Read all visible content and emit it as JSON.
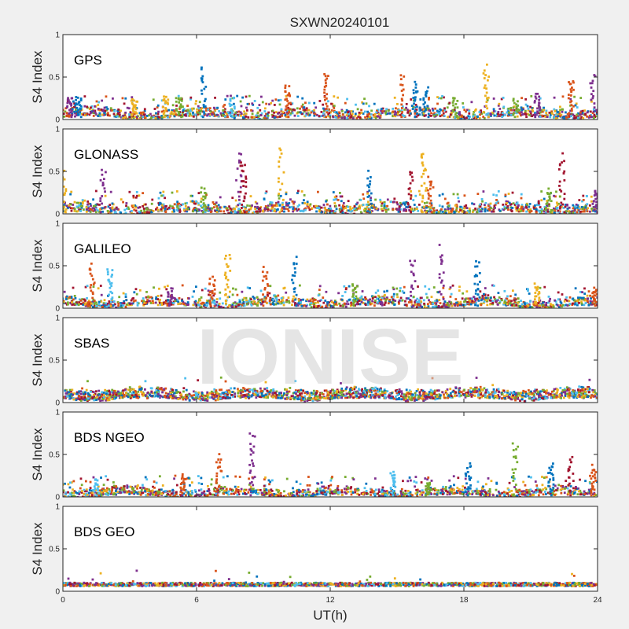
{
  "chart_data": {
    "type": "scatter",
    "title": "SXWN20240101",
    "xlabel": "UT(h)",
    "ylabel": "S4 Index",
    "xlim": [
      0,
      24
    ],
    "ylim": [
      0,
      1
    ],
    "xticks": [
      "0",
      "6",
      "12",
      "18",
      "24"
    ],
    "yticks": [
      "0",
      "0.5",
      "1"
    ],
    "grid": false,
    "watermark": "IONISE",
    "series_colors": [
      "#0072BD",
      "#D95319",
      "#EDB120",
      "#7E2F8E",
      "#77AC30",
      "#4DBEEE",
      "#A2142F"
    ],
    "panels": [
      {
        "name": "GPS",
        "baseline_band": [
          0.03,
          0.13
        ],
        "spikes": [
          {
            "x": 0.3,
            "peak": 0.28,
            "c": 3
          },
          {
            "x": 0.7,
            "peak": 0.28,
            "c": 0
          },
          {
            "x": 3.2,
            "peak": 0.25,
            "c": 2
          },
          {
            "x": 4.6,
            "peak": 0.3,
            "c": 2
          },
          {
            "x": 5.2,
            "peak": 0.28,
            "c": 4
          },
          {
            "x": 6.3,
            "peak": 0.65,
            "c": 0
          },
          {
            "x": 7.6,
            "peak": 0.28,
            "c": 5
          },
          {
            "x": 10.1,
            "peak": 0.42,
            "c": 1
          },
          {
            "x": 11.8,
            "peak": 0.6,
            "c": 1
          },
          {
            "x": 15.2,
            "peak": 0.55,
            "c": 1
          },
          {
            "x": 15.8,
            "peak": 0.45,
            "c": 0
          },
          {
            "x": 16.3,
            "peak": 0.38,
            "c": 0
          },
          {
            "x": 17.6,
            "peak": 0.28,
            "c": 4
          },
          {
            "x": 19.0,
            "peak": 0.65,
            "c": 2
          },
          {
            "x": 20.3,
            "peak": 0.25,
            "c": 4
          },
          {
            "x": 21.3,
            "peak": 0.32,
            "c": 3
          },
          {
            "x": 22.8,
            "peak": 0.52,
            "c": 1
          },
          {
            "x": 23.8,
            "peak": 0.58,
            "c": 3
          }
        ]
      },
      {
        "name": "GLONASS",
        "baseline_band": [
          0.02,
          0.12
        ],
        "spikes": [
          {
            "x": 0.05,
            "peak": 0.58,
            "c": 2
          },
          {
            "x": 1.8,
            "peak": 0.55,
            "c": 3
          },
          {
            "x": 6.3,
            "peak": 0.32,
            "c": 4
          },
          {
            "x": 7.9,
            "peak": 0.78,
            "c": 3
          },
          {
            "x": 8.1,
            "peak": 0.65,
            "c": 6
          },
          {
            "x": 9.8,
            "peak": 0.82,
            "c": 2
          },
          {
            "x": 13.8,
            "peak": 0.52,
            "c": 0
          },
          {
            "x": 15.6,
            "peak": 0.55,
            "c": 6
          },
          {
            "x": 16.2,
            "peak": 0.82,
            "c": 2
          },
          {
            "x": 16.5,
            "peak": 0.45,
            "c": 1
          },
          {
            "x": 21.8,
            "peak": 0.3,
            "c": 4
          },
          {
            "x": 22.4,
            "peak": 0.72,
            "c": 6
          },
          {
            "x": 23.9,
            "peak": 0.3,
            "c": 3
          }
        ]
      },
      {
        "name": "GALILEO",
        "baseline_band": [
          0.03,
          0.12
        ],
        "spikes": [
          {
            "x": 1.3,
            "peak": 0.55,
            "c": 1
          },
          {
            "x": 2.1,
            "peak": 0.5,
            "c": 5
          },
          {
            "x": 4.8,
            "peak": 0.25,
            "c": 3
          },
          {
            "x": 6.7,
            "peak": 0.38,
            "c": 1
          },
          {
            "x": 7.4,
            "peak": 0.68,
            "c": 2
          },
          {
            "x": 9.1,
            "peak": 0.52,
            "c": 1
          },
          {
            "x": 10.4,
            "peak": 0.65,
            "c": 0
          },
          {
            "x": 13.1,
            "peak": 0.3,
            "c": 4
          },
          {
            "x": 15.7,
            "peak": 0.62,
            "c": 3
          },
          {
            "x": 17.0,
            "peak": 0.75,
            "c": 3
          },
          {
            "x": 18.6,
            "peak": 0.58,
            "c": 0
          },
          {
            "x": 21.3,
            "peak": 0.3,
            "c": 2
          },
          {
            "x": 23.9,
            "peak": 0.25,
            "c": 1
          }
        ]
      },
      {
        "name": "SBAS",
        "baseline_band": [
          0.05,
          0.16
        ],
        "spikes": []
      },
      {
        "name": "BDS NGEO",
        "baseline_band": [
          0.02,
          0.1
        ],
        "spikes": [
          {
            "x": 1.5,
            "peak": 0.22,
            "c": 5
          },
          {
            "x": 5.4,
            "peak": 0.28,
            "c": 1
          },
          {
            "x": 7.0,
            "peak": 0.52,
            "c": 1
          },
          {
            "x": 8.5,
            "peak": 0.78,
            "c": 3
          },
          {
            "x": 14.8,
            "peak": 0.32,
            "c": 5
          },
          {
            "x": 16.4,
            "peak": 0.18,
            "c": 4
          },
          {
            "x": 18.2,
            "peak": 0.42,
            "c": 0
          },
          {
            "x": 20.3,
            "peak": 0.68,
            "c": 4
          },
          {
            "x": 21.9,
            "peak": 0.42,
            "c": 0
          },
          {
            "x": 22.8,
            "peak": 0.48,
            "c": 6
          },
          {
            "x": 23.8,
            "peak": 0.38,
            "c": 1
          }
        ]
      },
      {
        "name": "BDS GEO",
        "baseline_band": [
          0.06,
          0.1
        ],
        "spikes": []
      }
    ]
  }
}
